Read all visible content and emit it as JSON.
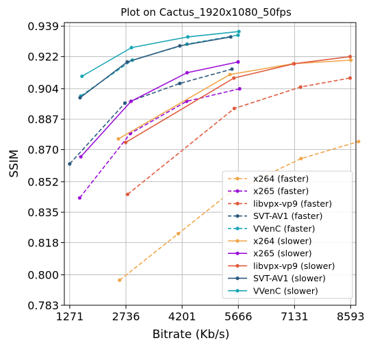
{
  "chart_data": {
    "type": "line",
    "title": "Plot on Cactus_1920x1080_50fps",
    "xlabel": "Bitrate (Kb/s)",
    "ylabel": "SSIM",
    "xlim": [
      1130,
      8730
    ],
    "ylim": [
      0.783,
      0.941
    ],
    "xticks": [
      1271,
      2736,
      4201,
      5666,
      7131,
      8593
    ],
    "xtick_labels": [
      "1271",
      "2736",
      "4201",
      "5666",
      "7131",
      "8593"
    ],
    "yticks": [
      0.783,
      0.8,
      0.818,
      0.835,
      0.852,
      0.87,
      0.887,
      0.904,
      0.922,
      0.939
    ],
    "ytick_labels": [
      "0.783",
      "0.800",
      "0.818",
      "0.835",
      "0.852",
      "0.870",
      "0.887",
      "0.904",
      "0.922",
      "0.939"
    ],
    "grid": true,
    "legend_position": "bottom-right",
    "series": [
      {
        "name": "x264 (faster)",
        "color": "#f0a64a",
        "dashed": true,
        "x": [
          2570,
          4100,
          5450,
          7300,
          8800
        ],
        "y": [
          0.797,
          0.823,
          0.846,
          0.865,
          0.8745
        ]
      },
      {
        "name": "x265 (faster)",
        "color": "#9b0fd8",
        "dashed": true,
        "x": [
          1530,
          2850,
          4320,
          5700
        ],
        "y": [
          0.843,
          0.879,
          0.897,
          0.904
        ]
      },
      {
        "name": "libvpx-vp9 (faster)",
        "color": "#e05a3e",
        "dashed": true,
        "x": [
          2780,
          5560,
          7290,
          8580
        ],
        "y": [
          0.845,
          0.893,
          0.905,
          0.91
        ]
      },
      {
        "name": "SVT-AV1 (faster)",
        "color": "#2d5a7f",
        "dashed": true,
        "x": [
          1270,
          2710,
          4140,
          5500
        ],
        "y": [
          0.862,
          0.896,
          0.907,
          0.915
        ]
      },
      {
        "name": "VVenC (faster)",
        "color": "#1aa6b5",
        "dashed": true,
        "x": [
          1560,
          2900,
          4330,
          5660
        ],
        "y": [
          0.9,
          0.92,
          0.929,
          0.934
        ]
      },
      {
        "name": "x264 (slower)",
        "color": "#f0a64a",
        "dashed": false,
        "x": [
          2540,
          5450,
          7100,
          8600
        ],
        "y": [
          0.876,
          0.912,
          0.918,
          0.92
        ]
      },
      {
        "name": "x265 (slower)",
        "color": "#9b0fd8",
        "dashed": false,
        "x": [
          1560,
          2870,
          4330,
          5660
        ],
        "y": [
          0.866,
          0.897,
          0.913,
          0.919
        ]
      },
      {
        "name": "libvpx-vp9 (slower)",
        "color": "#e05a3e",
        "dashed": false,
        "x": [
          2730,
          5550,
          7120,
          8580
        ],
        "y": [
          0.874,
          0.91,
          0.918,
          0.922
        ]
      },
      {
        "name": "SVT-AV1 (slower)",
        "color": "#2d5a7f",
        "dashed": false,
        "x": [
          1540,
          2770,
          4140,
          5470
        ],
        "y": [
          0.899,
          0.919,
          0.928,
          0.933
        ]
      },
      {
        "name": "VVenC (slower)",
        "color": "#1aa6b5",
        "dashed": false,
        "x": [
          1590,
          2880,
          4350,
          5680
        ],
        "y": [
          0.911,
          0.927,
          0.933,
          0.936
        ]
      }
    ]
  }
}
